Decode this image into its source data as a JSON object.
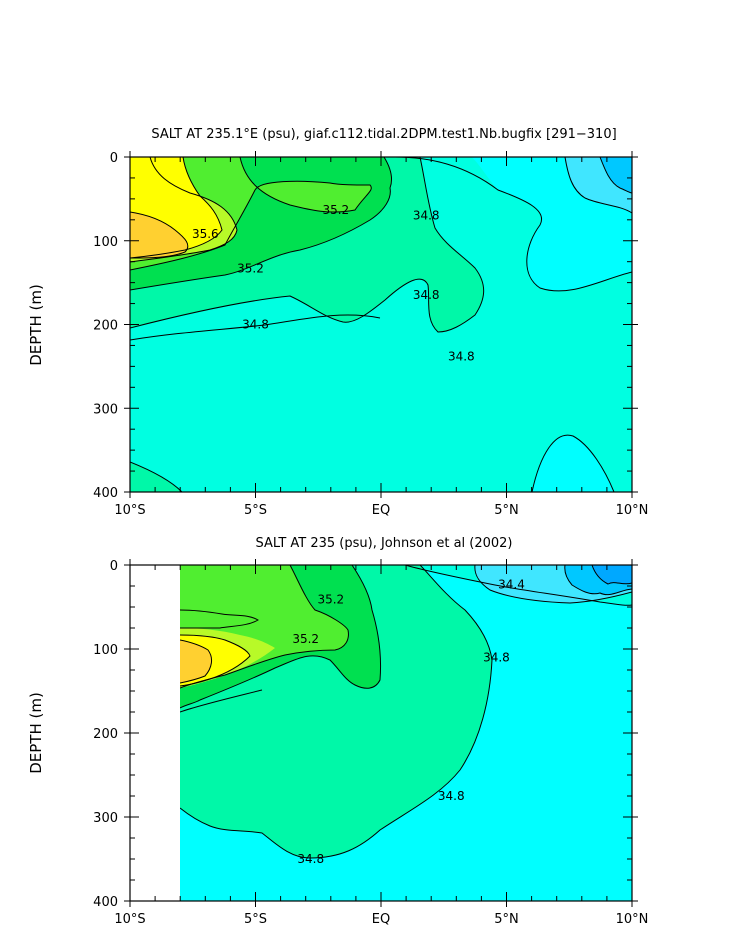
{
  "colors": {
    "band_348": "#00ffe1",
    "band_350": "#00f8a8",
    "band_352": "#00e050",
    "band_354": "#50ee30",
    "band_356": "#b8fa28",
    "band_358": "#ffff00",
    "band_360": "#ffd030",
    "band_346": "#00ffff",
    "band_344": "#40e6ff",
    "band_342": "#00c8ff",
    "band_340": "#00a8ff"
  },
  "chart_data": [
    {
      "type": "contour",
      "title": "SALT AT 235.1°E (psu), giaf.c112.tidal.2DPM.test1.Nb.bugfix [291−310]",
      "xlabel": "",
      "ylabel": "DEPTH (m)",
      "x_range": [
        -10,
        10
      ],
      "y_range": [
        0,
        400
      ],
      "y_inverted": true,
      "x_ticks": [
        -10,
        -5,
        0,
        5,
        10
      ],
      "x_tick_labels": [
        "10°S",
        "5°S",
        "EQ",
        "5°N",
        "10°N"
      ],
      "y_ticks": [
        0,
        100,
        200,
        300,
        400
      ],
      "y_tick_labels": [
        "0",
        "100",
        "200",
        "300",
        "400"
      ],
      "contour_labels": [
        {
          "text": "35.6",
          "x": -7.0,
          "y": 92
        },
        {
          "text": "35.2",
          "x": -1.8,
          "y": 63
        },
        {
          "text": "35.2",
          "x": -5.2,
          "y": 133
        },
        {
          "text": "34.8",
          "x": 1.8,
          "y": 70
        },
        {
          "text": "34.8",
          "x": 1.8,
          "y": 165
        },
        {
          "text": "34.8",
          "x": -5.0,
          "y": 200
        },
        {
          "text": "34.8",
          "x": 3.2,
          "y": 238
        }
      ]
    },
    {
      "type": "contour",
      "title": "SALT AT 235 (psu), Johnson et al (2002)",
      "xlabel": "",
      "ylabel": "DEPTH (m)",
      "x_range": [
        -10,
        10
      ],
      "y_range": [
        0,
        400
      ],
      "y_inverted": true,
      "data_x_start": -8,
      "x_ticks": [
        -10,
        -5,
        0,
        5,
        10
      ],
      "x_tick_labels": [
        "10°S",
        "5°S",
        "EQ",
        "5°N",
        "10°N"
      ],
      "y_ticks": [
        0,
        100,
        200,
        300,
        400
      ],
      "y_tick_labels": [
        "0",
        "100",
        "200",
        "300",
        "400"
      ],
      "contour_labels": [
        {
          "text": "35.2",
          "x": -2.0,
          "y": 41
        },
        {
          "text": "35.2",
          "x": -3.0,
          "y": 88
        },
        {
          "text": "34.4",
          "x": 5.2,
          "y": 23
        },
        {
          "text": "34.8",
          "x": 4.6,
          "y": 110
        },
        {
          "text": "34.8",
          "x": 2.8,
          "y": 275
        },
        {
          "text": "34.8",
          "x": -2.8,
          "y": 350
        }
      ]
    }
  ]
}
